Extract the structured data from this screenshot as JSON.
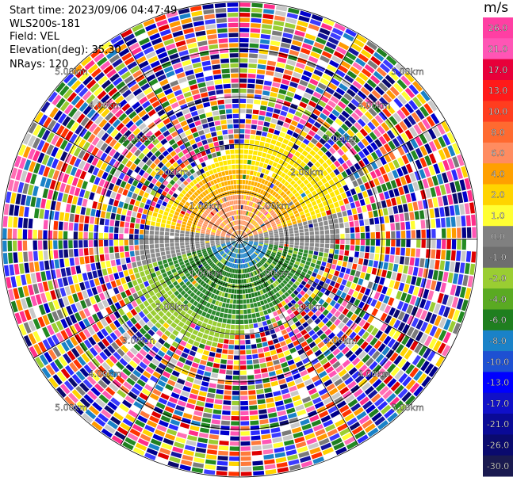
{
  "info": {
    "start_time": "Start time: 2023/09/06 04:47:49",
    "instrument": "WLS200s-181",
    "field": "Field: VEL",
    "elevation": "Elevation(deg): 35.30",
    "nrays": "NRays: 120"
  },
  "colorbar": {
    "unit": "m/s",
    "ticks": [
      "26.0",
      "21.0",
      "17.0",
      "13.0",
      "10.0",
      "8.0",
      "6.0",
      "4.0",
      "2.0",
      "1.0",
      "0.0",
      "-1.0",
      "-2.0",
      "-4.0",
      "-6.0",
      "-8.0",
      "-10.0",
      "-13.0",
      "-17.0",
      "-21.0",
      "-26.0",
      "-30.0"
    ],
    "colors": [
      "#ff3fa3",
      "#ff55b5",
      "#e8003a",
      "#ff1a1a",
      "#ff3d1f",
      "#ff6a30",
      "#ff8c60",
      "#ffa000",
      "#ffd400",
      "#ffff33",
      "#808080",
      "#6e6e6e",
      "#9acd32",
      "#5aaa22",
      "#1f7f1f",
      "#1a82c8",
      "#1e50d2",
      "#0000ff",
      "#1010c8",
      "#0a0a96",
      "#0a0a6e",
      "#1a1a50"
    ]
  },
  "range_rings": [
    "1.00km",
    "2.00km",
    "3.00km",
    "4.00km",
    "5.00km"
  ],
  "palette": {
    "noise": [
      "#ff2d8a",
      "#ff6fb4",
      "#e00000",
      "#ff3300",
      "#ff7a3a",
      "#ff9a00",
      "#ffd400",
      "#ffff33",
      "#00008b",
      "#0000cd",
      "#1515a0",
      "#2b2bff",
      "#0a0a6e",
      "#228b22",
      "#1f7f1f",
      "#9acd32",
      "#1a82c8",
      "#7b7b7b",
      "#c8c8c8",
      "#ffffff",
      "#ff55b5",
      "#3c3cff"
    ],
    "pos_far": "#ffe600",
    "pos_mid": "#ffb000",
    "pos_near": "#ff9966",
    "neg_far": "#9acd32",
    "neg_mid": "#2e8b2e",
    "neg_near": "#1f7a1f",
    "zero": "#8c8c8c"
  }
}
